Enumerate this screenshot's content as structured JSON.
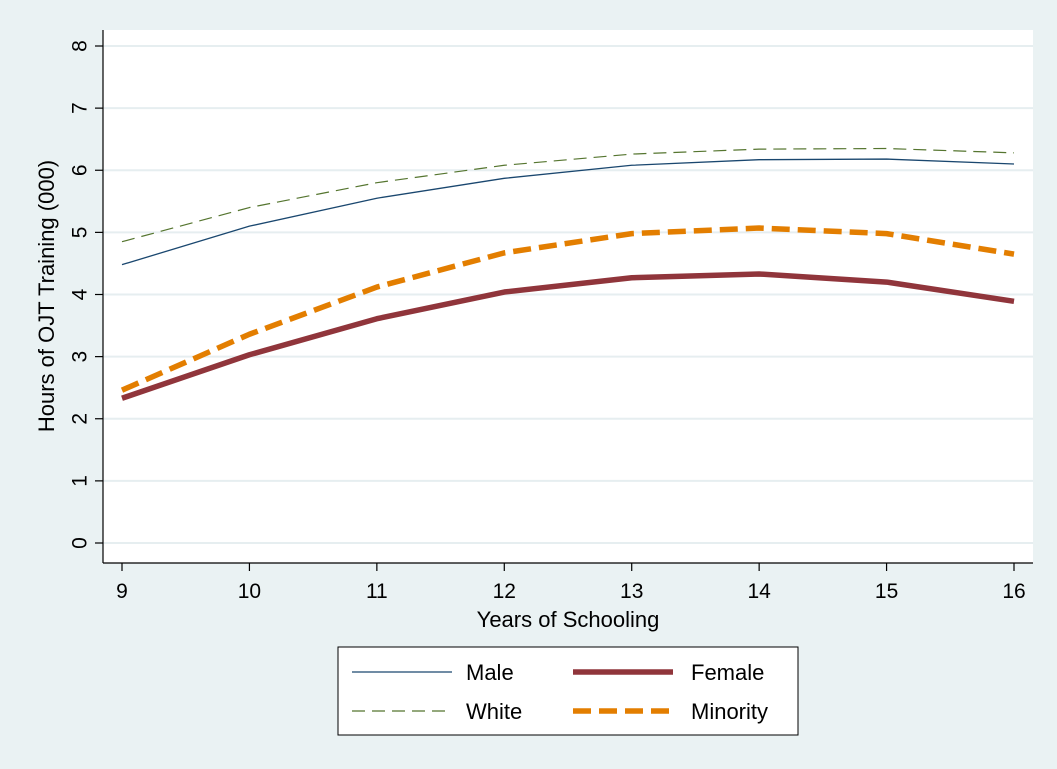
{
  "chart_data": {
    "type": "line",
    "title": "",
    "xlabel": "Years of Schooling",
    "ylabel": "Hours of OJT Training (000)",
    "x": [
      9,
      10,
      11,
      12,
      13,
      14,
      15,
      16
    ],
    "xticks": [
      "9",
      "10",
      "11",
      "12",
      "13",
      "14",
      "15",
      "16"
    ],
    "yticks": [
      "0",
      "1",
      "2",
      "3",
      "4",
      "5",
      "6",
      "7",
      "8"
    ],
    "xlim": [
      9,
      16
    ],
    "ylim": [
      0,
      8
    ],
    "grid": true,
    "legend_position": "bottom",
    "series": [
      {
        "name": "Male",
        "values": [
          4.48,
          5.1,
          5.55,
          5.87,
          6.08,
          6.17,
          6.18,
          6.1
        ],
        "color": "#1a476f",
        "style": "solid-thin"
      },
      {
        "name": "Female",
        "values": [
          2.33,
          3.03,
          3.61,
          4.04,
          4.27,
          4.33,
          4.2,
          3.89
        ],
        "color": "#90353b",
        "style": "solid-thick"
      },
      {
        "name": "White",
        "values": [
          4.85,
          5.4,
          5.8,
          6.08,
          6.26,
          6.34,
          6.35,
          6.28
        ],
        "color": "#55752f",
        "style": "dash-thin"
      },
      {
        "name": "Minority",
        "values": [
          2.46,
          3.36,
          4.12,
          4.67,
          4.98,
          5.07,
          4.98,
          4.65
        ],
        "color": "#e37e00",
        "style": "dash-thick"
      }
    ]
  }
}
